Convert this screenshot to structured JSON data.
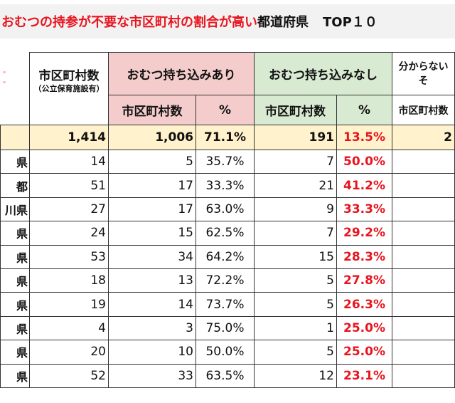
{
  "title": {
    "highlight": "おむつの持参が不要な市区町村の割合が高い",
    "rest": "都道府県",
    "suffix": "TOP１０"
  },
  "header": {
    "count_col": "市区町村数",
    "count_note": "（公立保育施設有）",
    "group_with": "おむつ持ち込みあり",
    "group_without": "おむつ持ち込みなし",
    "group_unknown": "分からない",
    "group_unknown_line2": "そ",
    "sub_count": "市区町村数",
    "sub_pct": "%"
  },
  "total": {
    "count": "1,414",
    "with_count": "1,006",
    "with_pct": "71.1%",
    "without_count": "191",
    "without_pct": "13.5%",
    "unknown_count": "2"
  },
  "rows": [
    {
      "name": "県",
      "count": "14",
      "with_count": "5",
      "with_pct": "35.7%",
      "without_count": "7",
      "without_pct": "50.0%"
    },
    {
      "name": "都",
      "count": "51",
      "with_count": "17",
      "with_pct": "33.3%",
      "without_count": "21",
      "without_pct": "41.2%"
    },
    {
      "name": "川県",
      "count": "27",
      "with_count": "17",
      "with_pct": "63.0%",
      "without_count": "9",
      "without_pct": "33.3%"
    },
    {
      "name": "県",
      "count": "24",
      "with_count": "15",
      "with_pct": "62.5%",
      "without_count": "7",
      "without_pct": "29.2%"
    },
    {
      "name": "県",
      "count": "53",
      "with_count": "34",
      "with_pct": "64.2%",
      "without_count": "15",
      "without_pct": "28.3%"
    },
    {
      "name": "県",
      "count": "18",
      "with_count": "13",
      "with_pct": "72.2%",
      "without_count": "5",
      "without_pct": "27.8%"
    },
    {
      "name": "県",
      "count": "19",
      "with_count": "14",
      "with_pct": "73.7%",
      "without_count": "5",
      "without_pct": "26.3%"
    },
    {
      "name": "県",
      "count": "4",
      "with_count": "3",
      "with_pct": "75.0%",
      "without_count": "1",
      "without_pct": "25.0%"
    },
    {
      "name": "県",
      "count": "20",
      "with_count": "10",
      "with_pct": "50.0%",
      "without_count": "5",
      "without_pct": "25.0%"
    },
    {
      "name": "県",
      "count": "52",
      "with_count": "33",
      "with_pct": "63.5%",
      "without_count": "12",
      "without_pct": "23.1%"
    }
  ]
}
